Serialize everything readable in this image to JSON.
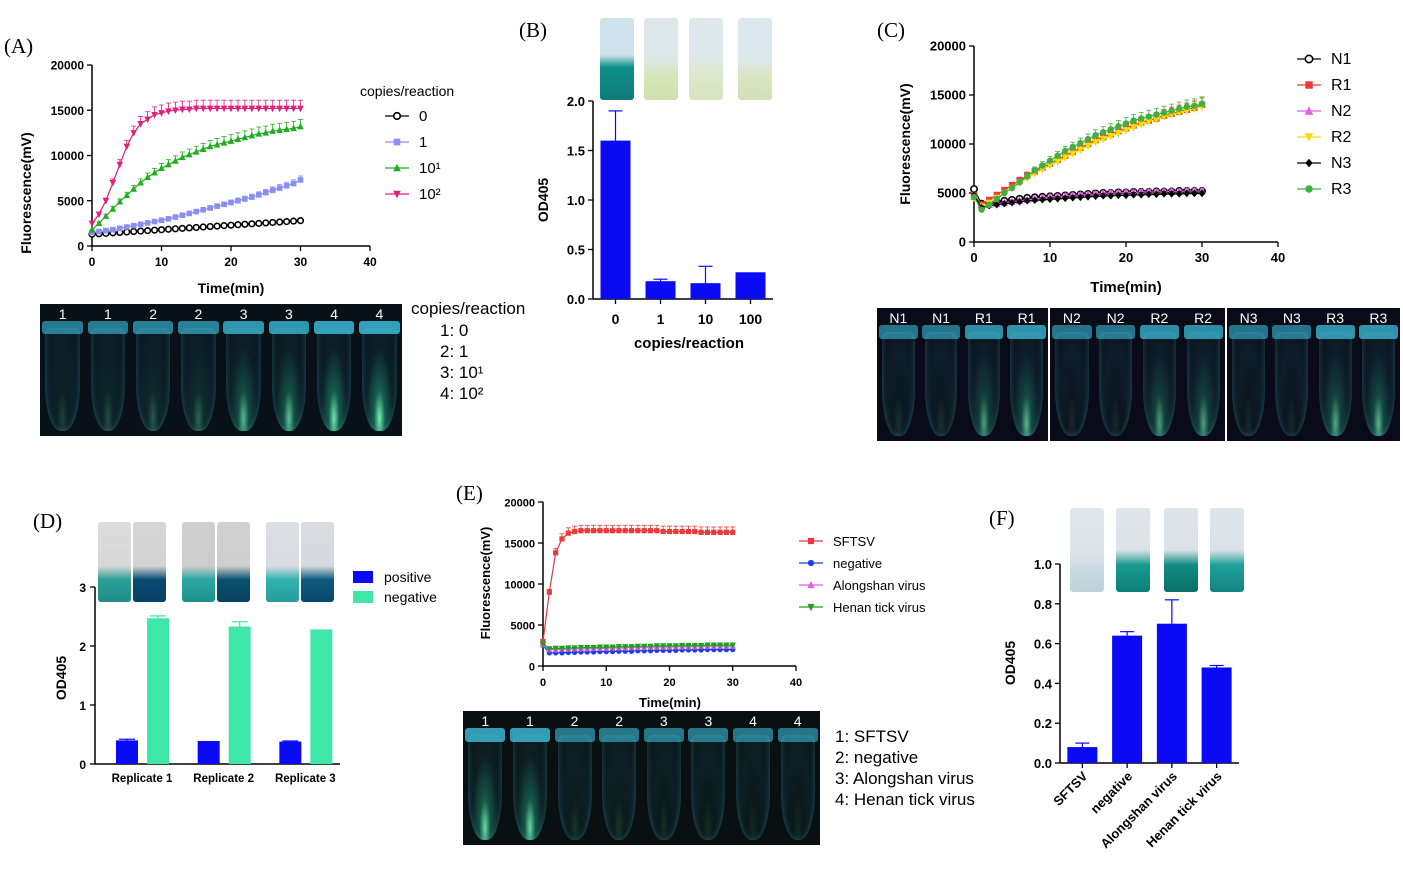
{
  "panel_labels": [
    "(A)",
    "(B)",
    "(C)",
    "(D)",
    "(E)",
    "(F)"
  ],
  "chart_data": [
    {
      "id": "A",
      "type": "line",
      "xlabel": "Time(min)",
      "ylabel": "Fluorescence(mV)",
      "xlim": [
        0,
        40
      ],
      "ylim": [
        0,
        20000
      ],
      "xticks": [
        "0",
        "10",
        "20",
        "30",
        "40"
      ],
      "yticks": [
        "0",
        "5000",
        "10000",
        "15000",
        "20000"
      ],
      "legend_title": "copies/reaction",
      "legend_position": "right",
      "series": [
        {
          "name": "0",
          "color": "#000000",
          "marker": "circle-half",
          "values": [
            1300,
            1350,
            1400,
            1450,
            1500,
            1550,
            1600,
            1650,
            1700,
            1750,
            1800,
            1850,
            1900,
            1950,
            2000,
            2050,
            2100,
            2150,
            2200,
            2250,
            2300,
            2350,
            2400,
            2450,
            2500,
            2550,
            2600,
            2650,
            2700,
            2750,
            2800
          ]
        },
        {
          "name": "1",
          "color": "#8a8ff0",
          "marker": "square",
          "values": [
            1500,
            1600,
            1700,
            1800,
            1950,
            2100,
            2250,
            2400,
            2550,
            2700,
            2850,
            3000,
            3200,
            3400,
            3600,
            3800,
            4000,
            4200,
            4400,
            4600,
            4800,
            5000,
            5200,
            5400,
            5650,
            5900,
            6150,
            6400,
            6650,
            6900,
            7300
          ]
        },
        {
          "name": "10¹",
          "color": "#1fae1f",
          "marker": "triangle-up",
          "values": [
            1800,
            2500,
            3300,
            4100,
            4900,
            5600,
            6300,
            7000,
            7600,
            8100,
            8600,
            9000,
            9400,
            9800,
            10100,
            10400,
            10700,
            11000,
            11200,
            11400,
            11600,
            11800,
            12000,
            12200,
            12400,
            12500,
            12700,
            12800,
            12900,
            13000,
            13200
          ]
        },
        {
          "name": "10²",
          "color": "#e0207a",
          "marker": "triangle-down",
          "values": [
            2500,
            3500,
            5000,
            7000,
            9000,
            11000,
            12500,
            13500,
            14000,
            14500,
            14700,
            14900,
            15000,
            15100,
            15100,
            15200,
            15200,
            15200,
            15200,
            15200,
            15200,
            15200,
            15200,
            15200,
            15200,
            15200,
            15200,
            15200,
            15200,
            15200,
            15200
          ]
        }
      ]
    },
    {
      "id": "B",
      "type": "bar",
      "xlabel": "copies/reaction",
      "ylabel": "OD405",
      "categories": [
        "0",
        "1",
        "10",
        "100"
      ],
      "values": [
        1.6,
        0.18,
        0.16,
        0.27
      ],
      "errors": [
        0.3,
        0.02,
        0.17,
        0.0
      ],
      "ylim": [
        0,
        2.0
      ],
      "yticks": [
        "0.0",
        "0.5",
        "1.0",
        "1.5",
        "2.0"
      ],
      "color": "#0a0af5"
    },
    {
      "id": "C",
      "type": "line",
      "xlabel": "Time(min)",
      "ylabel": "Fluorescence(mV)",
      "xlim": [
        0,
        40
      ],
      "ylim": [
        0,
        20000
      ],
      "xticks": [
        "0",
        "10",
        "20",
        "30",
        "40"
      ],
      "yticks": [
        "0",
        "5000",
        "10000",
        "15000",
        "20000"
      ],
      "legend_position": "right",
      "series": [
        {
          "name": "N1",
          "color": "#000000",
          "marker": "circle-half",
          "values": [
            5400,
            3900,
            4000,
            4100,
            4200,
            4300,
            4400,
            4500,
            4550,
            4600,
            4650,
            4700,
            4750,
            4800,
            4850,
            4900,
            4950,
            5000,
            5000,
            5050,
            5050,
            5100,
            5100,
            5100,
            5150,
            5150,
            5150,
            5200,
            5200,
            5200,
            5200
          ]
        },
        {
          "name": "R1",
          "color": "#e83a3a",
          "marker": "square",
          "values": [
            4800,
            3800,
            4300,
            4800,
            5300,
            5800,
            6300,
            6800,
            7200,
            7600,
            8000,
            8400,
            8800,
            9200,
            9600,
            10000,
            10400,
            10700,
            11000,
            11300,
            11600,
            11900,
            12200,
            12400,
            12600,
            12900,
            13100,
            13300,
            13500,
            13700,
            14000
          ]
        },
        {
          "name": "N2",
          "color": "#e060e0",
          "marker": "triangle-up",
          "values": [
            4600,
            3700,
            3800,
            3900,
            4000,
            4100,
            4200,
            4300,
            4400,
            4500,
            4600,
            4650,
            4700,
            4750,
            4800,
            4850,
            4900,
            4950,
            5000,
            5000,
            5050,
            5050,
            5100,
            5100,
            5100,
            5150,
            5150,
            5150,
            5200,
            5200,
            5200
          ]
        },
        {
          "name": "R2",
          "color": "#f0e000",
          "marker": "triangle-down",
          "values": [
            4500,
            3600,
            4000,
            4500,
            5000,
            5500,
            6000,
            6500,
            7000,
            7400,
            7800,
            8200,
            8600,
            9000,
            9400,
            9800,
            10200,
            10500,
            10800,
            11100,
            11400,
            11700,
            12000,
            12300,
            12500,
            12800,
            13000,
            13200,
            13400,
            13600,
            13800
          ]
        },
        {
          "name": "N3",
          "color": "#000000",
          "marker": "diamond",
          "values": [
            4800,
            3500,
            3700,
            3800,
            3900,
            4000,
            4100,
            4200,
            4250,
            4300,
            4350,
            4400,
            4450,
            4500,
            4550,
            4600,
            4650,
            4700,
            4700,
            4750,
            4750,
            4800,
            4800,
            4850,
            4850,
            4900,
            4900,
            4900,
            4950,
            4950,
            4950
          ]
        },
        {
          "name": "R3",
          "color": "#40b040",
          "marker": "circle",
          "values": [
            4600,
            3300,
            3800,
            4400,
            5000,
            5500,
            6100,
            6700,
            7300,
            7800,
            8300,
            8800,
            9300,
            9700,
            10100,
            10500,
            10900,
            11200,
            11500,
            11800,
            12100,
            12400,
            12600,
            12800,
            13000,
            13200,
            13400,
            13600,
            13800,
            13900,
            14100
          ]
        }
      ]
    },
    {
      "id": "D",
      "type": "bar",
      "ylabel": "OD405",
      "categories": [
        "Replicate 1",
        "Replicate 2",
        "Replicate 3"
      ],
      "ylim": [
        0,
        3
      ],
      "yticks": [
        "0",
        "1",
        "2",
        "3"
      ],
      "legend_position": "top-right",
      "series": [
        {
          "name": "positive",
          "color": "#0a0af5",
          "values": [
            0.4,
            0.39,
            0.38
          ],
          "errors": [
            0.02,
            0.0,
            0.01
          ]
        },
        {
          "name": "negative",
          "color": "#3ee6a8",
          "values": [
            2.47,
            2.33,
            2.28
          ],
          "errors": [
            0.04,
            0.08,
            0.0
          ]
        }
      ]
    },
    {
      "id": "E",
      "type": "line",
      "xlabel": "Time(min)",
      "ylabel": "Fluorescence(mV)",
      "xlim": [
        0,
        40
      ],
      "ylim": [
        0,
        20000
      ],
      "xticks": [
        "0",
        "10",
        "20",
        "30",
        "40"
      ],
      "yticks": [
        "0",
        "5000",
        "10000",
        "15000",
        "20000"
      ],
      "legend_position": "right",
      "series": [
        {
          "name": "SFTSV",
          "color": "#e83a3a",
          "marker": "square",
          "values": [
            3000,
            9000,
            13800,
            15500,
            16200,
            16400,
            16500,
            16500,
            16500,
            16500,
            16500,
            16500,
            16500,
            16500,
            16500,
            16500,
            16500,
            16500,
            16500,
            16400,
            16400,
            16400,
            16400,
            16400,
            16400,
            16300,
            16300,
            16300,
            16300,
            16300,
            16300
          ]
        },
        {
          "name": "negative",
          "color": "#1a3cf0",
          "marker": "circle",
          "values": [
            2500,
            1600,
            1600,
            1600,
            1650,
            1650,
            1700,
            1700,
            1700,
            1750,
            1750,
            1750,
            1800,
            1800,
            1800,
            1850,
            1850,
            1850,
            1900,
            1900,
            1900,
            1900,
            1950,
            1950,
            1950,
            1950,
            2000,
            2000,
            2000,
            2000,
            2000
          ]
        },
        {
          "name": "Alongshan virus",
          "color": "#e060e0",
          "marker": "triangle-up",
          "values": [
            2600,
            2000,
            2000,
            2050,
            2050,
            2100,
            2100,
            2100,
            2150,
            2150,
            2150,
            2200,
            2200,
            2200,
            2250,
            2250,
            2250,
            2300,
            2300,
            2300,
            2300,
            2350,
            2350,
            2350,
            2350,
            2400,
            2400,
            2400,
            2400,
            2400,
            2400
          ]
        },
        {
          "name": "Henan tick virus",
          "color": "#20a020",
          "marker": "triangle-down",
          "values": [
            2700,
            2100,
            2150,
            2150,
            2200,
            2200,
            2250,
            2250,
            2250,
            2300,
            2300,
            2300,
            2350,
            2350,
            2350,
            2400,
            2400,
            2400,
            2450,
            2450,
            2450,
            2450,
            2500,
            2500,
            2500,
            2500,
            2550,
            2550,
            2550,
            2550,
            2550
          ]
        }
      ]
    },
    {
      "id": "F",
      "type": "bar",
      "ylabel": "OD405",
      "categories": [
        "SFTSV",
        "negative",
        "Alongshan virus",
        "Henan tick virus"
      ],
      "values": [
        0.08,
        0.64,
        0.7,
        0.48
      ],
      "errors": [
        0.02,
        0.02,
        0.12,
        0.01
      ],
      "ylim": [
        0,
        1.0
      ],
      "yticks": [
        "0.0",
        "0.2",
        "0.4",
        "0.6",
        "0.8",
        "1.0"
      ],
      "color": "#0a0af5"
    }
  ],
  "photoA": {
    "tube_labels": [
      "1",
      "1",
      "2",
      "2",
      "3",
      "3",
      "4",
      "4"
    ],
    "key_title": "copies/reaction",
    "key_lines": [
      "1: 0",
      "2: 1",
      "3: 10¹",
      "4: 10²"
    ]
  },
  "photoC": {
    "group1_labels": [
      "N1",
      "N1",
      "R1",
      "R1"
    ],
    "group2_labels": [
      "N2",
      "N2",
      "R2",
      "R2"
    ],
    "group3_labels": [
      "N3",
      "N3",
      "R3",
      "R3"
    ]
  },
  "photoE": {
    "tube_labels": [
      "1",
      "1",
      "2",
      "2",
      "3",
      "3",
      "4",
      "4"
    ],
    "key_lines": [
      "1: SFTSV",
      "2: negative",
      "3: Alongshan virus",
      "4: Henan tick virus"
    ]
  }
}
